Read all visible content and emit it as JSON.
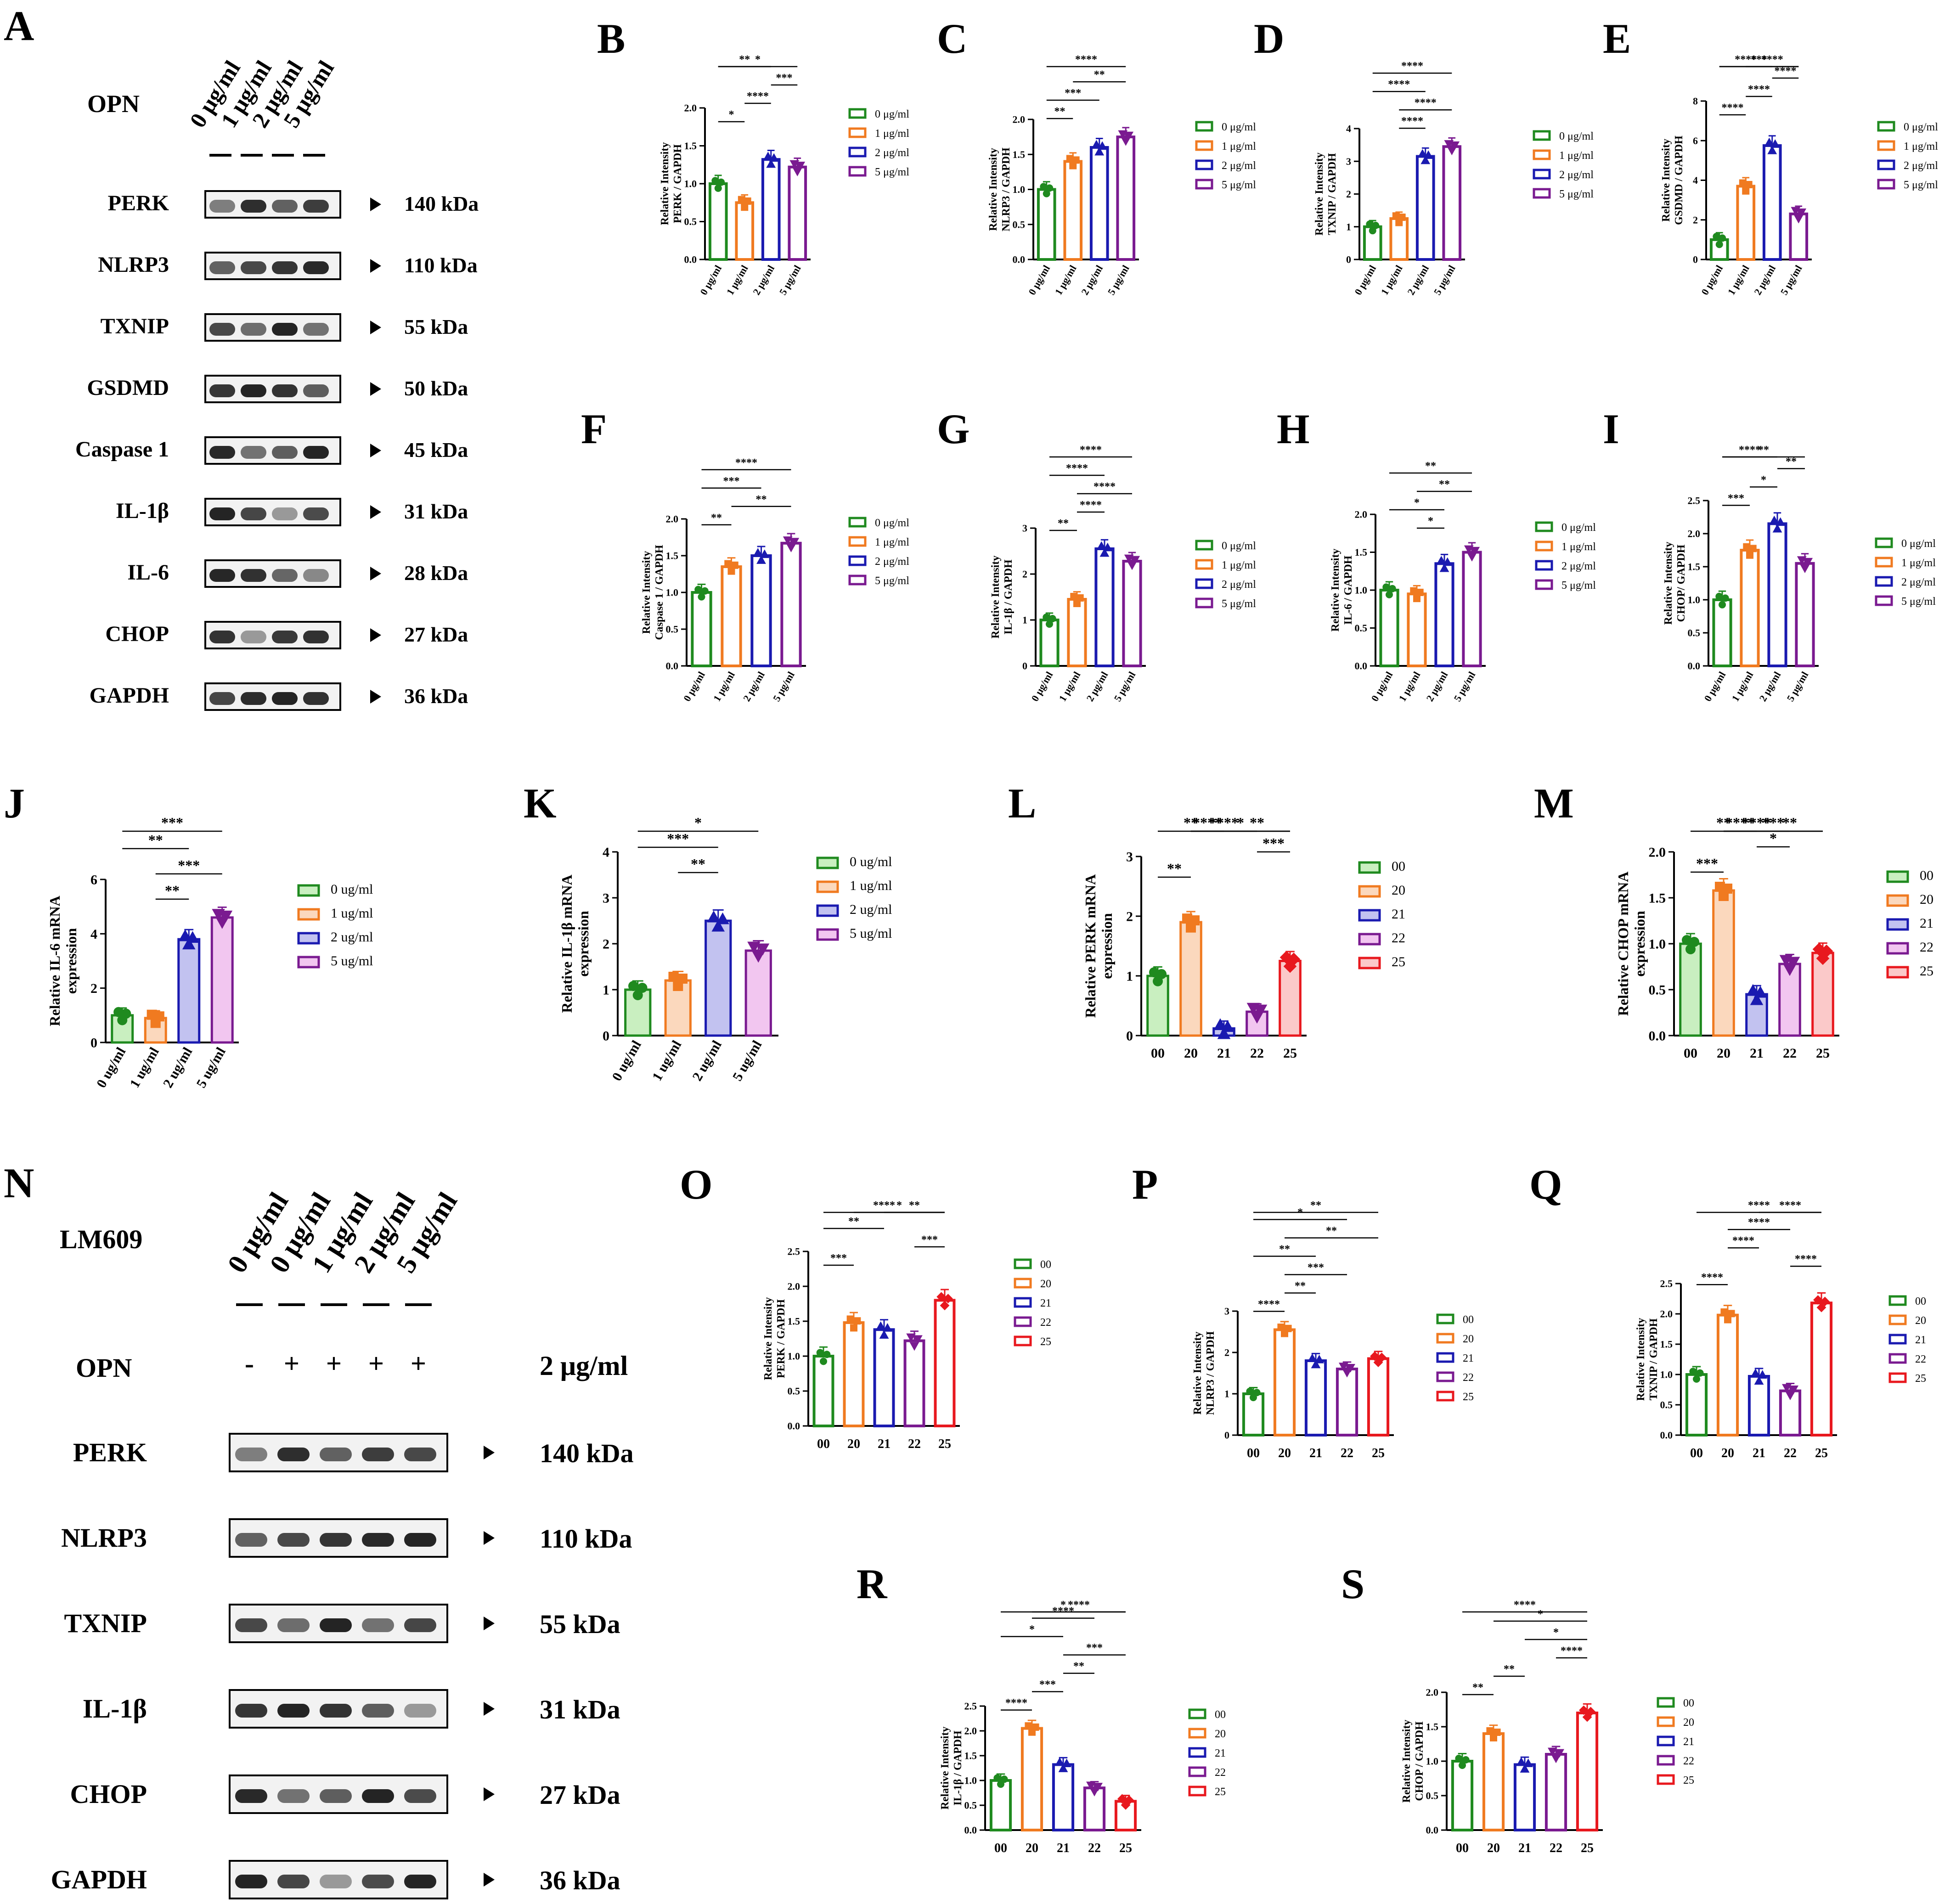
{
  "panels": {
    "A": {
      "letter": "A",
      "title": "OPN",
      "doses": [
        "0 μg/ml",
        "1 μg/ml",
        "2 μg/ml",
        "5 μg/ml"
      ],
      "rows": [
        {
          "label": "PERK",
          "kda": "140 kDa"
        },
        {
          "label": "NLRP3",
          "kda": "110 kDa"
        },
        {
          "label": "TXNIP",
          "kda": "55 kDa"
        },
        {
          "label": "GSDMD",
          "kda": "50 kDa"
        },
        {
          "label": "Caspase 1",
          "kda": "45 kDa"
        },
        {
          "label": "IL-1β",
          "kda": "31 kDa"
        },
        {
          "label": "IL-6",
          "kda": "28 kDa"
        },
        {
          "label": "CHOP",
          "kda": "27 kDa"
        },
        {
          "label": "GAPDH",
          "kda": "36 kDa"
        }
      ]
    },
    "N": {
      "letter": "N",
      "title": "LM609",
      "doses": [
        "0 μg/ml",
        "0 μg/ml",
        "1 μg/ml",
        "2 μg/ml",
        "5 μg/ml"
      ],
      "opn_label": "OPN",
      "opn_signs": [
        "-",
        "+",
        "+",
        "+",
        "+"
      ],
      "opn_conc": "2 μg/ml",
      "rows": [
        {
          "label": "PERK",
          "kda": "140 kDa"
        },
        {
          "label": "NLRP3",
          "kda": "110 kDa"
        },
        {
          "label": "TXNIP",
          "kda": "55 kDa"
        },
        {
          "label": "IL-1β",
          "kda": "31 kDa"
        },
        {
          "label": "CHOP",
          "kda": "27 kDa"
        },
        {
          "label": "GAPDH",
          "kda": "36 kDa"
        }
      ]
    }
  },
  "colors": {
    "green": "#1f8a1f",
    "orange": "#f07a20",
    "blue": "#1a1ab0",
    "purple": "#7a1a90",
    "red": "#e8181e",
    "lightgreen": "#c9efc0",
    "lightorange": "#fbd8bd",
    "lightblue": "#c2c2f0",
    "lightpurple": "#f2c6f0"
  },
  "chart_data": [
    {
      "id": "B",
      "type": "bar",
      "ylabel": "Relative Intensity\nPERK / GAPDH",
      "categories": [
        "0 μg/ml",
        "1 μg/ml",
        "2 μg/ml",
        "5 μg/ml"
      ],
      "values": [
        1.0,
        0.75,
        1.32,
        1.22
      ],
      "ylim": [
        0,
        2.0
      ],
      "yticks": [
        "0.0",
        "0.5",
        "1.0",
        "1.5",
        "2.0"
      ],
      "legend": [
        "0 μg/ml",
        "1 μg/ml",
        "2 μg/ml",
        "5 μg/ml"
      ],
      "sig": [
        {
          "a": 0,
          "b": 1,
          "label": "*"
        },
        {
          "a": 1,
          "b": 2,
          "label": "****"
        },
        {
          "a": 2,
          "b": 3,
          "label": "***"
        },
        {
          "a": 0,
          "b": 2,
          "label": "**"
        },
        {
          "a": 0,
          "b": 3,
          "label": "*"
        }
      ]
    },
    {
      "id": "C",
      "type": "bar",
      "ylabel": "Relative Intensity\nNLRP3 / GAPDH",
      "categories": [
        "0 μg/ml",
        "1 μg/ml",
        "2 μg/ml",
        "5 μg/ml"
      ],
      "values": [
        1.0,
        1.4,
        1.6,
        1.75
      ],
      "ylim": [
        0,
        2.0
      ],
      "yticks": [
        "0.0",
        "0.5",
        "1.0",
        "1.5",
        "2.0"
      ],
      "legend": [
        "0 μg/ml",
        "1 μg/ml",
        "2 μg/ml",
        "5 μg/ml"
      ],
      "sig": [
        {
          "a": 0,
          "b": 1,
          "label": "**"
        },
        {
          "a": 0,
          "b": 2,
          "label": "***"
        },
        {
          "a": 1,
          "b": 3,
          "label": "**"
        },
        {
          "a": 0,
          "b": 3,
          "label": "****"
        }
      ]
    },
    {
      "id": "D",
      "type": "bar",
      "ylabel": "Relative Intensity\nTXNIP / GAPDH",
      "categories": [
        "0 μg/ml",
        "1 μg/ml",
        "2 μg/ml",
        "5 μg/ml"
      ],
      "values": [
        1.0,
        1.25,
        3.15,
        3.45
      ],
      "ylim": [
        0,
        4
      ],
      "yticks": [
        "0",
        "1",
        "2",
        "3",
        "4"
      ],
      "legend": [
        "0 μg/ml",
        "1 μg/ml",
        "2 μg/ml",
        "5 μg/ml"
      ],
      "sig": [
        {
          "a": 1,
          "b": 2,
          "label": "****"
        },
        {
          "a": 1,
          "b": 3,
          "label": "****"
        },
        {
          "a": 0,
          "b": 2,
          "label": "****"
        },
        {
          "a": 0,
          "b": 3,
          "label": "****"
        }
      ]
    },
    {
      "id": "E",
      "type": "bar",
      "ylabel": "Relative Intensity\nGSDMD / GAPDH",
      "categories": [
        "0 μg/ml",
        "1 μg/ml",
        "2 μg/ml",
        "5 μg/ml"
      ],
      "values": [
        1.0,
        3.7,
        5.75,
        2.3
      ],
      "ylim": [
        0,
        8
      ],
      "yticks": [
        "0",
        "2",
        "4",
        "6",
        "8"
      ],
      "legend": [
        "0 μg/ml",
        "1 μg/ml",
        "2 μg/ml",
        "5 μg/ml"
      ],
      "sig": [
        {
          "a": 0,
          "b": 1,
          "label": "****"
        },
        {
          "a": 1,
          "b": 2,
          "label": "****"
        },
        {
          "a": 2,
          "b": 3,
          "label": "****"
        },
        {
          "a": 0,
          "b": 2,
          "label": "****"
        },
        {
          "a": 1,
          "b": 3,
          "label": "****"
        },
        {
          "a": 0,
          "b": 3,
          "label": "***"
        }
      ]
    },
    {
      "id": "F",
      "type": "bar",
      "ylabel": "Relative Intensity\nCaspase 1 / GAPDH",
      "categories": [
        "0 μg/ml",
        "1 μg/ml",
        "2 μg/ml",
        "5 μg/ml"
      ],
      "values": [
        1.0,
        1.35,
        1.5,
        1.67
      ],
      "ylim": [
        0,
        2.0
      ],
      "yticks": [
        "0.0",
        "0.5",
        "1.0",
        "1.5",
        "2.0"
      ],
      "legend": [
        "0 μg/ml",
        "1 μg/ml",
        "2 μg/ml",
        "5 μg/ml"
      ],
      "sig": [
        {
          "a": 0,
          "b": 1,
          "label": "**"
        },
        {
          "a": 1,
          "b": 3,
          "label": "**"
        },
        {
          "a": 0,
          "b": 2,
          "label": "***"
        },
        {
          "a": 0,
          "b": 3,
          "label": "****"
        }
      ]
    },
    {
      "id": "G",
      "type": "bar",
      "ylabel": "Relative Intensity\nIL-1β / GAPDH",
      "categories": [
        "0 μg/ml",
        "1 μg/ml",
        "2 μg/ml",
        "5 μg/ml"
      ],
      "values": [
        1.0,
        1.45,
        2.55,
        2.28
      ],
      "ylim": [
        0,
        3
      ],
      "yticks": [
        "0",
        "1",
        "2",
        "3"
      ],
      "legend": [
        "0 μg/ml",
        "1 μg/ml",
        "2 μg/ml",
        "5 μg/ml"
      ],
      "sig": [
        {
          "a": 0,
          "b": 1,
          "label": "**"
        },
        {
          "a": 1,
          "b": 2,
          "label": "****"
        },
        {
          "a": 1,
          "b": 3,
          "label": "****"
        },
        {
          "a": 0,
          "b": 2,
          "label": "****"
        },
        {
          "a": 0,
          "b": 3,
          "label": "****"
        }
      ]
    },
    {
      "id": "H",
      "type": "bar",
      "ylabel": "Relative Intensity\nIL-6 / GAPDH",
      "categories": [
        "0 μg/ml",
        "1 μg/ml",
        "2 μg/ml",
        "5 μg/ml"
      ],
      "values": [
        1.0,
        0.95,
        1.35,
        1.5
      ],
      "ylim": [
        0,
        2.0
      ],
      "yticks": [
        "0.0",
        "0.5",
        "1.0",
        "1.5",
        "2.0"
      ],
      "legend": [
        "0 μg/ml",
        "1 μg/ml",
        "2 μg/ml",
        "5 μg/ml"
      ],
      "sig": [
        {
          "a": 1,
          "b": 2,
          "label": "*"
        },
        {
          "a": 0,
          "b": 2,
          "label": "*"
        },
        {
          "a": 1,
          "b": 3,
          "label": "**"
        },
        {
          "a": 0,
          "b": 3,
          "label": "**"
        }
      ]
    },
    {
      "id": "I",
      "type": "bar",
      "ylabel": "Relative Intensity\nCHOP/ GAPDH",
      "categories": [
        "0 μg/ml",
        "1 μg/ml",
        "2 μg/ml",
        "5 μg/ml"
      ],
      "values": [
        1.0,
        1.75,
        2.15,
        1.55
      ],
      "ylim": [
        0,
        2.5
      ],
      "yticks": [
        "0.0",
        "0.5",
        "1.0",
        "1.5",
        "2.0",
        "2.5"
      ],
      "legend": [
        "0 μg/ml",
        "1 μg/ml",
        "2 μg/ml",
        "5 μg/ml"
      ],
      "sig": [
        {
          "a": 0,
          "b": 1,
          "label": "***"
        },
        {
          "a": 1,
          "b": 2,
          "label": "*"
        },
        {
          "a": 2,
          "b": 3,
          "label": "**"
        },
        {
          "a": 0,
          "b": 2,
          "label": "****"
        },
        {
          "a": 0,
          "b": 3,
          "label": "**"
        }
      ]
    },
    {
      "id": "J",
      "type": "bar",
      "style": "filled",
      "ylabel": "Relative IL-6 mRNA\nexpression",
      "categories": [
        "0 ug/ml",
        "1 ug/ml",
        "2 ug/ml",
        "5 ug/ml"
      ],
      "values": [
        1.0,
        0.9,
        3.8,
        4.6
      ],
      "ylim": [
        0,
        6
      ],
      "yticks": [
        "0",
        "2",
        "4",
        "6"
      ],
      "legend": [
        "0 ug/ml",
        "1 ug/ml",
        "2 ug/ml",
        "5 ug/ml"
      ],
      "sig": [
        {
          "a": 1,
          "b": 2,
          "label": "**"
        },
        {
          "a": 1,
          "b": 3,
          "label": "***"
        },
        {
          "a": 0,
          "b": 2,
          "label": "**"
        },
        {
          "a": 0,
          "b": 3,
          "label": "***"
        }
      ]
    },
    {
      "id": "K",
      "type": "bar",
      "style": "filled",
      "ylabel": "Relative IL-1β mRNA\nexpression",
      "categories": [
        "0 ug/ml",
        "1 ug/ml",
        "2 ug/ml",
        "5 ug/ml"
      ],
      "values": [
        1.0,
        1.2,
        2.5,
        1.85
      ],
      "ylim": [
        0,
        4
      ],
      "yticks": [
        "0",
        "1",
        "2",
        "3",
        "4"
      ],
      "legend": [
        "0 ug/ml",
        "1 ug/ml",
        "2 ug/ml",
        "5 ug/ml"
      ],
      "sig": [
        {
          "a": 1,
          "b": 2,
          "label": "**"
        },
        {
          "a": 0,
          "b": 2,
          "label": "***"
        },
        {
          "a": 0,
          "b": 3,
          "label": "*"
        }
      ]
    },
    {
      "id": "L",
      "type": "bar",
      "style": "filled",
      "ylabel": "Relative PERK mRNA\nexpression",
      "categories": [
        "00",
        "20",
        "21",
        "22",
        "25"
      ],
      "values": [
        1.0,
        1.9,
        0.12,
        0.4,
        1.25
      ],
      "ylim": [
        0,
        3
      ],
      "yticks": [
        "0",
        "1",
        "2",
        "3"
      ],
      "legend": [
        "00",
        "20",
        "21",
        "22",
        "25"
      ],
      "sig": [
        {
          "a": 0,
          "b": 1,
          "label": "**"
        },
        {
          "a": 3,
          "b": 4,
          "label": "***"
        },
        {
          "a": 0,
          "b": 2,
          "label": "**"
        },
        {
          "a": 2,
          "b": 4,
          "label": "**"
        },
        {
          "a": 1,
          "b": 2,
          "label": "****"
        },
        {
          "a": 1,
          "b": 3,
          "label": "****"
        },
        {
          "a": 1,
          "b": 4,
          "label": "*"
        }
      ]
    },
    {
      "id": "M",
      "type": "bar",
      "style": "filled",
      "ylabel": "Relative CHOP mRNA\nexpression",
      "categories": [
        "00",
        "20",
        "21",
        "22",
        "25"
      ],
      "values": [
        1.0,
        1.58,
        0.45,
        0.78,
        0.9
      ],
      "ylim": [
        0,
        2.0
      ],
      "yticks": [
        "0.0",
        "0.5",
        "1.0",
        "1.5",
        "2.0"
      ],
      "legend": [
        "00",
        "20",
        "21",
        "22",
        "25"
      ],
      "sig": [
        {
          "a": 0,
          "b": 1,
          "label": "***"
        },
        {
          "a": 2,
          "b": 3,
          "label": "*"
        },
        {
          "a": 1,
          "b": 2,
          "label": "****"
        },
        {
          "a": 2,
          "b": 4,
          "label": "**"
        },
        {
          "a": 1,
          "b": 3,
          "label": "****"
        },
        {
          "a": 1,
          "b": 4,
          "label": "***"
        },
        {
          "a": 0,
          "b": 2,
          "label": "**"
        }
      ]
    },
    {
      "id": "O",
      "type": "bar",
      "ylabel": "Relative Intensity\nPERK / GAPDH",
      "categories": [
        "00",
        "20",
        "21",
        "22",
        "25"
      ],
      "values": [
        1.0,
        1.48,
        1.38,
        1.22,
        1.8
      ],
      "ylim": [
        0,
        2.5
      ],
      "yticks": [
        "0.0",
        "0.5",
        "1.0",
        "1.5",
        "2.0",
        "2.5"
      ],
      "legend": [
        "00",
        "20",
        "21",
        "22",
        "25"
      ],
      "sig": [
        {
          "a": 0,
          "b": 1,
          "label": "***"
        },
        {
          "a": 3,
          "b": 4,
          "label": "***"
        },
        {
          "a": 0,
          "b": 2,
          "label": "**"
        },
        {
          "a": 2,
          "b": 4,
          "label": "**"
        },
        {
          "a": 1,
          "b": 4,
          "label": "*"
        },
        {
          "a": 0,
          "b": 4,
          "label": "****"
        }
      ]
    },
    {
      "id": "P",
      "type": "bar",
      "ylabel": "Relative Intensity\nNLRP3 / GAPDH",
      "categories": [
        "00",
        "20",
        "21",
        "22",
        "25"
      ],
      "values": [
        1.0,
        2.55,
        1.8,
        1.6,
        1.85
      ],
      "ylim": [
        0,
        3
      ],
      "yticks": [
        "0",
        "1",
        "2",
        "3"
      ],
      "legend": [
        "00",
        "20",
        "21",
        "22",
        "25"
      ],
      "sig": [
        {
          "a": 0,
          "b": 1,
          "label": "****"
        },
        {
          "a": 1,
          "b": 2,
          "label": "**"
        },
        {
          "a": 1,
          "b": 3,
          "label": "***"
        },
        {
          "a": 1,
          "b": 4,
          "label": "**"
        },
        {
          "a": 0,
          "b": 2,
          "label": "**"
        },
        {
          "a": 0,
          "b": 3,
          "label": "*"
        },
        {
          "a": 0,
          "b": 4,
          "label": "**"
        }
      ]
    },
    {
      "id": "Q",
      "type": "bar",
      "ylabel": "Relative Intensity\nTXNIP / GAPDH",
      "categories": [
        "00",
        "20",
        "21",
        "22",
        "25"
      ],
      "values": [
        1.0,
        1.98,
        0.97,
        0.73,
        2.18
      ],
      "ylim": [
        0,
        2.5
      ],
      "yticks": [
        "0.0",
        "0.5",
        "1.0",
        "1.5",
        "2.0",
        "2.5"
      ],
      "legend": [
        "00",
        "20",
        "21",
        "22",
        "25"
      ],
      "sig": [
        {
          "a": 0,
          "b": 1,
          "label": "****"
        },
        {
          "a": 3,
          "b": 4,
          "label": "****"
        },
        {
          "a": 1,
          "b": 2,
          "label": "****"
        },
        {
          "a": 1,
          "b": 3,
          "label": "****"
        },
        {
          "a": 2,
          "b": 4,
          "label": "****"
        },
        {
          "a": 0,
          "b": 4,
          "label": "****"
        }
      ]
    },
    {
      "id": "R",
      "type": "bar",
      "ylabel": "Relative Intensity\nIL-1β / GAPDH",
      "categories": [
        "00",
        "20",
        "21",
        "22",
        "25"
      ],
      "values": [
        1.0,
        2.05,
        1.32,
        0.85,
        0.58
      ],
      "ylim": [
        0,
        2.5
      ],
      "yticks": [
        "0.0",
        "0.5",
        "1.0",
        "1.5",
        "2.0",
        "2.5"
      ],
      "legend": [
        "00",
        "20",
        "21",
        "22",
        "25"
      ],
      "sig": [
        {
          "a": 0,
          "b": 1,
          "label": "****"
        },
        {
          "a": 1,
          "b": 2,
          "label": "***"
        },
        {
          "a": 2,
          "b": 3,
          "label": "**"
        },
        {
          "a": 2,
          "b": 4,
          "label": "***"
        },
        {
          "a": 0,
          "b": 2,
          "label": "*"
        },
        {
          "a": 1,
          "b": 3,
          "label": "****"
        },
        {
          "a": 1,
          "b": 4,
          "label": "****"
        },
        {
          "a": 0,
          "b": 4,
          "label": "*"
        }
      ]
    },
    {
      "id": "S",
      "type": "bar",
      "ylabel": "Relative Intensity\nCHOP / GAPDH",
      "categories": [
        "00",
        "20",
        "21",
        "22",
        "25"
      ],
      "values": [
        1.0,
        1.4,
        0.95,
        1.1,
        1.7
      ],
      "ylim": [
        0,
        2.0
      ],
      "yticks": [
        "0.0",
        "0.5",
        "1.0",
        "1.5",
        "2.0"
      ],
      "legend": [
        "00",
        "20",
        "21",
        "22",
        "25"
      ],
      "sig": [
        {
          "a": 0,
          "b": 1,
          "label": "**"
        },
        {
          "a": 1,
          "b": 2,
          "label": "**"
        },
        {
          "a": 3,
          "b": 4,
          "label": "****"
        },
        {
          "a": 2,
          "b": 4,
          "label": "*"
        },
        {
          "a": 1,
          "b": 4,
          "label": "*"
        },
        {
          "a": 0,
          "b": 4,
          "label": "****"
        }
      ]
    }
  ]
}
